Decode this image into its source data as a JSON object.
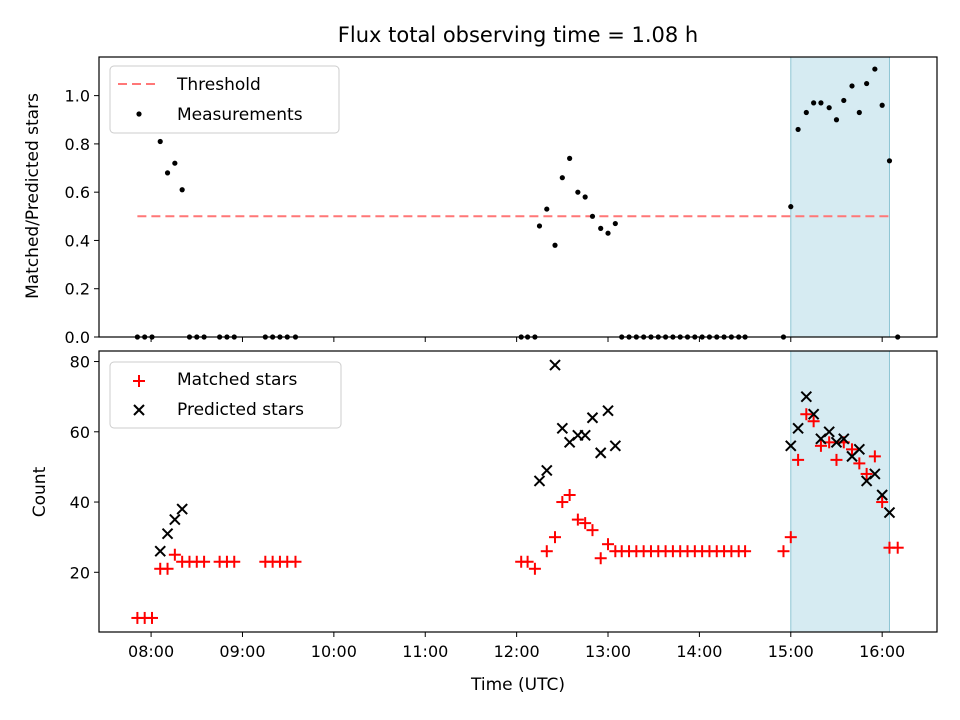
{
  "chart_data": {
    "type": "scatter",
    "title": "Flux total observing time = 1.08 h",
    "xlabel": "Time (UTC)",
    "x_range_hours": [
      7.43,
      16.6
    ],
    "x_ticks": [
      {
        "value": 8,
        "label": "08:00"
      },
      {
        "value": 9,
        "label": "09:00"
      },
      {
        "value": 10,
        "label": "10:00"
      },
      {
        "value": 11,
        "label": "11:00"
      },
      {
        "value": 12,
        "label": "12:00"
      },
      {
        "value": 13,
        "label": "13:00"
      },
      {
        "value": 14,
        "label": "14:00"
      },
      {
        "value": 15,
        "label": "15:00"
      },
      {
        "value": 16,
        "label": "16:00"
      }
    ],
    "highlight_span": {
      "start": 15.0,
      "end": 16.08,
      "color": "#add8e6"
    },
    "panels": [
      {
        "ylabel": "Matched/Predicted stars",
        "ylim": [
          0,
          1.16
        ],
        "y_ticks": [
          {
            "value": 0.0,
            "label": "0.0"
          },
          {
            "value": 0.2,
            "label": "0.2"
          },
          {
            "value": 0.4,
            "label": "0.4"
          },
          {
            "value": 0.6,
            "label": "0.6"
          },
          {
            "value": 0.8,
            "label": "0.8"
          },
          {
            "value": 1.0,
            "label": "1.0"
          }
        ],
        "legend": [
          {
            "label": "Threshold",
            "kind": "dashed-line",
            "color": "#ff7777"
          },
          {
            "label": "Measurements",
            "kind": "dot",
            "color": "#000000"
          }
        ],
        "threshold": {
          "y": 0.5,
          "x_start": 7.85,
          "x_end": 16.1,
          "color": "#ff7777"
        },
        "series": [
          {
            "name": "Measurements",
            "marker": "dot",
            "color": "#000000",
            "points": [
              [
                7.85,
                0.0
              ],
              [
                7.93,
                0.0
              ],
              [
                8.01,
                0.0
              ],
              [
                8.1,
                0.81
              ],
              [
                8.18,
                0.68
              ],
              [
                8.26,
                0.72
              ],
              [
                8.34,
                0.61
              ],
              [
                8.42,
                0.0
              ],
              [
                8.5,
                0.0
              ],
              [
                8.58,
                0.0
              ],
              [
                8.75,
                0.0
              ],
              [
                8.83,
                0.0
              ],
              [
                8.91,
                0.0
              ],
              [
                9.25,
                0.0
              ],
              [
                9.33,
                0.0
              ],
              [
                9.41,
                0.0
              ],
              [
                9.49,
                0.0
              ],
              [
                9.58,
                0.0
              ],
              [
                12.05,
                0.0
              ],
              [
                12.12,
                0.0
              ],
              [
                12.2,
                0.0
              ],
              [
                12.25,
                0.46
              ],
              [
                12.33,
                0.53
              ],
              [
                12.42,
                0.38
              ],
              [
                12.5,
                0.66
              ],
              [
                12.58,
                0.74
              ],
              [
                12.67,
                0.6
              ],
              [
                12.75,
                0.58
              ],
              [
                12.83,
                0.5
              ],
              [
                12.92,
                0.45
              ],
              [
                13.0,
                0.43
              ],
              [
                13.08,
                0.47
              ],
              [
                13.15,
                0.0
              ],
              [
                13.23,
                0.0
              ],
              [
                13.31,
                0.0
              ],
              [
                13.39,
                0.0
              ],
              [
                13.47,
                0.0
              ],
              [
                13.55,
                0.0
              ],
              [
                13.63,
                0.0
              ],
              [
                13.71,
                0.0
              ],
              [
                13.79,
                0.0
              ],
              [
                13.87,
                0.0
              ],
              [
                13.95,
                0.0
              ],
              [
                14.03,
                0.0
              ],
              [
                14.11,
                0.0
              ],
              [
                14.19,
                0.0
              ],
              [
                14.27,
                0.0
              ],
              [
                14.35,
                0.0
              ],
              [
                14.43,
                0.0
              ],
              [
                14.5,
                0.0
              ],
              [
                14.92,
                0.0
              ],
              [
                15.0,
                0.54
              ],
              [
                15.08,
                0.86
              ],
              [
                15.17,
                0.93
              ],
              [
                15.25,
                0.97
              ],
              [
                15.33,
                0.97
              ],
              [
                15.42,
                0.95
              ],
              [
                15.5,
                0.9
              ],
              [
                15.58,
                0.98
              ],
              [
                15.67,
                1.04
              ],
              [
                15.75,
                0.93
              ],
              [
                15.83,
                1.05
              ],
              [
                15.92,
                1.11
              ],
              [
                16.0,
                0.96
              ],
              [
                16.08,
                0.73
              ],
              [
                16.17,
                0.0
              ]
            ]
          }
        ]
      },
      {
        "ylabel": "Count",
        "ylim": [
          3,
          83
        ],
        "y_ticks": [
          {
            "value": 20,
            "label": "20"
          },
          {
            "value": 40,
            "label": "40"
          },
          {
            "value": 60,
            "label": "60"
          },
          {
            "value": 80,
            "label": "80"
          }
        ],
        "legend": [
          {
            "label": "Matched stars",
            "kind": "plus",
            "color": "#ff0000"
          },
          {
            "label": "Predicted stars",
            "kind": "cross",
            "color": "#000000"
          }
        ],
        "series": [
          {
            "name": "Matched stars",
            "marker": "plus",
            "color": "#ff0000",
            "points": [
              [
                7.85,
                7
              ],
              [
                7.93,
                7
              ],
              [
                8.01,
                7
              ],
              [
                8.1,
                21
              ],
              [
                8.18,
                21
              ],
              [
                8.26,
                25
              ],
              [
                8.34,
                23
              ],
              [
                8.42,
                23
              ],
              [
                8.5,
                23
              ],
              [
                8.58,
                23
              ],
              [
                8.75,
                23
              ],
              [
                8.83,
                23
              ],
              [
                8.91,
                23
              ],
              [
                9.25,
                23
              ],
              [
                9.33,
                23
              ],
              [
                9.41,
                23
              ],
              [
                9.49,
                23
              ],
              [
                9.58,
                23
              ],
              [
                12.05,
                23
              ],
              [
                12.12,
                23
              ],
              [
                12.2,
                21
              ],
              [
                12.33,
                26
              ],
              [
                12.42,
                30
              ],
              [
                12.5,
                40
              ],
              [
                12.58,
                42
              ],
              [
                12.67,
                35
              ],
              [
                12.75,
                34
              ],
              [
                12.83,
                32
              ],
              [
                12.92,
                24
              ],
              [
                13.0,
                28
              ],
              [
                13.08,
                26
              ],
              [
                13.15,
                26
              ],
              [
                13.23,
                26
              ],
              [
                13.31,
                26
              ],
              [
                13.39,
                26
              ],
              [
                13.47,
                26
              ],
              [
                13.55,
                26
              ],
              [
                13.63,
                26
              ],
              [
                13.71,
                26
              ],
              [
                13.79,
                26
              ],
              [
                13.87,
                26
              ],
              [
                13.95,
                26
              ],
              [
                14.03,
                26
              ],
              [
                14.11,
                26
              ],
              [
                14.19,
                26
              ],
              [
                14.27,
                26
              ],
              [
                14.35,
                26
              ],
              [
                14.43,
                26
              ],
              [
                14.5,
                26
              ],
              [
                14.92,
                26
              ],
              [
                15.0,
                30
              ],
              [
                15.08,
                52
              ],
              [
                15.17,
                65
              ],
              [
                15.25,
                63
              ],
              [
                15.33,
                56
              ],
              [
                15.42,
                57
              ],
              [
                15.5,
                52
              ],
              [
                15.58,
                57
              ],
              [
                15.67,
                55
              ],
              [
                15.75,
                51
              ],
              [
                15.83,
                48
              ],
              [
                15.92,
                53
              ],
              [
                16.0,
                40
              ],
              [
                16.08,
                27
              ],
              [
                16.17,
                27
              ]
            ]
          },
          {
            "name": "Predicted stars",
            "marker": "cross",
            "color": "#000000",
            "points": [
              [
                8.1,
                26
              ],
              [
                8.18,
                31
              ],
              [
                8.26,
                35
              ],
              [
                8.34,
                38
              ],
              [
                12.25,
                46
              ],
              [
                12.33,
                49
              ],
              [
                12.42,
                79
              ],
              [
                12.5,
                61
              ],
              [
                12.58,
                57
              ],
              [
                12.67,
                59
              ],
              [
                12.75,
                59
              ],
              [
                12.83,
                64
              ],
              [
                12.92,
                54
              ],
              [
                13.0,
                66
              ],
              [
                13.08,
                56
              ],
              [
                15.0,
                56
              ],
              [
                15.08,
                61
              ],
              [
                15.17,
                70
              ],
              [
                15.25,
                65
              ],
              [
                15.33,
                58
              ],
              [
                15.42,
                60
              ],
              [
                15.5,
                57
              ],
              [
                15.58,
                58
              ],
              [
                15.67,
                53
              ],
              [
                15.75,
                55
              ],
              [
                15.83,
                46
              ],
              [
                15.92,
                48
              ],
              [
                16.0,
                42
              ],
              [
                16.08,
                37
              ]
            ]
          }
        ]
      }
    ]
  }
}
